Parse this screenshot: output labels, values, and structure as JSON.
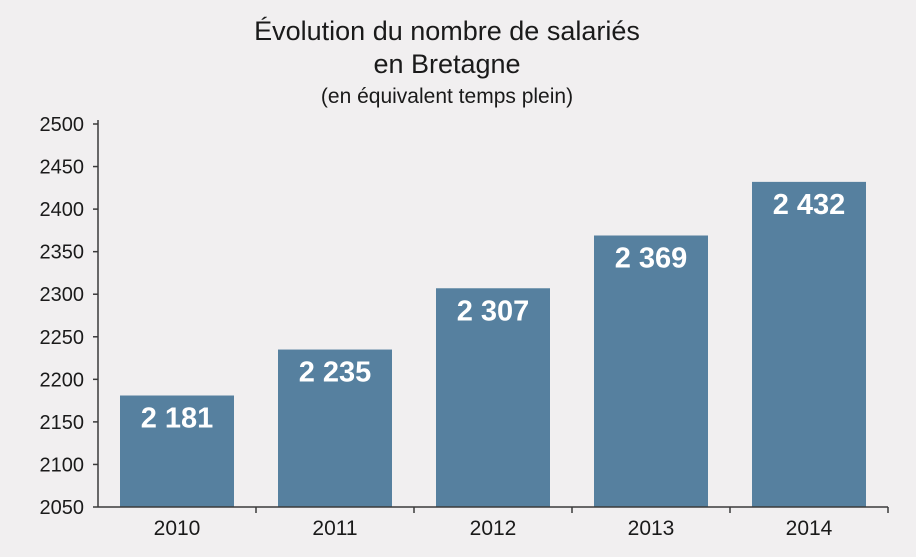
{
  "chart_data": {
    "type": "bar",
    "title": "Évolution du  nombre de salariés",
    "title_line2": "en Bretagne",
    "subtitle": "(en équivalent temps plein)",
    "xlabel": "",
    "ylabel": "",
    "categories": [
      "2010",
      "2011",
      "2012",
      "2013",
      "2014"
    ],
    "values": [
      2181,
      2235,
      2307,
      2369,
      2432
    ],
    "value_labels": [
      "2 181",
      "2 235",
      "2 307",
      "2 369",
      "2 432"
    ],
    "ylim": [
      2050,
      2500
    ],
    "yticks": [
      2050,
      2100,
      2150,
      2200,
      2250,
      2300,
      2350,
      2400,
      2450,
      2500
    ],
    "grid": false,
    "bar_color": "#56809f",
    "legend": "none"
  }
}
